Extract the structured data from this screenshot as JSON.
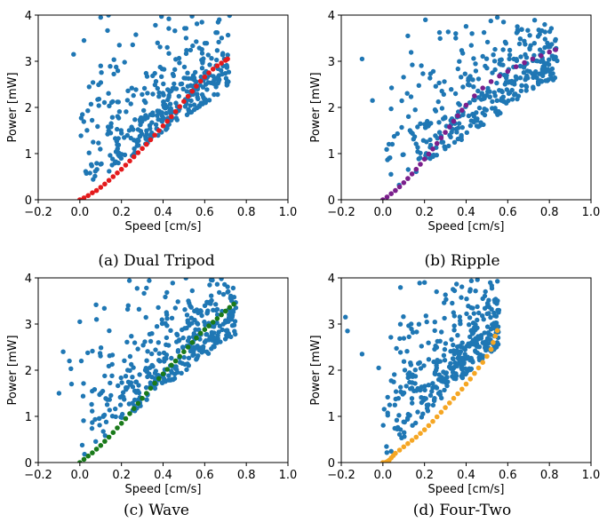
{
  "chart_data": [
    {
      "type": "scatter",
      "caption": "(a) Dual Tripod",
      "xlabel": "Speed [cm/s]",
      "ylabel": "Power [mW]",
      "xlim": [
        -0.2,
        1.0
      ],
      "ylim": [
        0,
        4
      ],
      "xticks": [
        "−0.2",
        "0.0",
        "0.2",
        "0.4",
        "0.6",
        "0.8",
        "1.0"
      ],
      "yticks": [
        "0",
        "1",
        "2",
        "3",
        "4"
      ],
      "colors": {
        "background": "#1f77b4",
        "frontier": "#e41a1c"
      },
      "background": {
        "x_max": 0.72,
        "slope": 4.2,
        "count": 380,
        "outliers": [
          [
            0.1,
            3.95
          ],
          [
            0.02,
            3.45
          ],
          [
            -0.03,
            3.15
          ],
          [
            0.19,
            3.35
          ],
          [
            0.42,
            3.3
          ],
          [
            0.1,
            2.9
          ]
        ]
      },
      "frontier": {
        "x": [
          0.0,
          0.02,
          0.04,
          0.06,
          0.08,
          0.1,
          0.12,
          0.14,
          0.16,
          0.18,
          0.2,
          0.22,
          0.24,
          0.26,
          0.28,
          0.3,
          0.32,
          0.34,
          0.36,
          0.38,
          0.4,
          0.42,
          0.44,
          0.46,
          0.48,
          0.5,
          0.52,
          0.54,
          0.56,
          0.58,
          0.6,
          0.62,
          0.64,
          0.66,
          0.68,
          0.7,
          0.71
        ],
        "y": [
          0.0,
          0.04,
          0.09,
          0.15,
          0.2,
          0.27,
          0.34,
          0.42,
          0.5,
          0.58,
          0.66,
          0.75,
          0.84,
          0.93,
          1.02,
          1.11,
          1.2,
          1.3,
          1.4,
          1.5,
          1.6,
          1.7,
          1.8,
          1.91,
          2.02,
          2.13,
          2.24,
          2.35,
          2.46,
          2.57,
          2.66,
          2.75,
          2.83,
          2.9,
          2.96,
          3.02,
          3.05
        ]
      }
    },
    {
      "type": "scatter",
      "caption": "(b) Ripple",
      "xlabel": "Speed [cm/s]",
      "ylabel": "Power [mW]",
      "xlim": [
        -0.2,
        1.0
      ],
      "ylim": [
        0,
        4
      ],
      "xticks": [
        "−0.2",
        "0.0",
        "0.2",
        "0.4",
        "0.6",
        "0.8",
        "1.0"
      ],
      "yticks": [
        "0",
        "1",
        "2",
        "3",
        "4"
      ],
      "colors": {
        "background": "#1f77b4",
        "frontier": "#7b1f8c"
      },
      "background": {
        "x_max": 0.84,
        "slope": 3.9,
        "count": 380,
        "outliers": [
          [
            0.55,
            3.95
          ],
          [
            0.35,
            3.6
          ],
          [
            0.35,
            3.5
          ],
          [
            0.12,
            3.55
          ],
          [
            -0.1,
            3.05
          ],
          [
            -0.05,
            2.15
          ],
          [
            0.58,
            3.85
          ]
        ]
      },
      "frontier": {
        "x": [
          0.0,
          0.02,
          0.04,
          0.06,
          0.08,
          0.1,
          0.12,
          0.14,
          0.16,
          0.18,
          0.2,
          0.22,
          0.24,
          0.26,
          0.28,
          0.3,
          0.32,
          0.34,
          0.36,
          0.38,
          0.4,
          0.44,
          0.48,
          0.52,
          0.56,
          0.6,
          0.64,
          0.68,
          0.72,
          0.76,
          0.8,
          0.83
        ],
        "y": [
          0.0,
          0.06,
          0.13,
          0.2,
          0.28,
          0.37,
          0.46,
          0.56,
          0.66,
          0.77,
          0.88,
          0.99,
          1.1,
          1.22,
          1.34,
          1.46,
          1.58,
          1.7,
          1.82,
          1.94,
          2.05,
          2.25,
          2.42,
          2.56,
          2.68,
          2.78,
          2.88,
          2.97,
          3.05,
          3.12,
          3.2,
          3.25
        ]
      }
    },
    {
      "type": "scatter",
      "caption": "(c) Wave",
      "xlabel": "Speed [cm/s]",
      "ylabel": "Power [mW]",
      "xlim": [
        -0.2,
        1.0
      ],
      "ylim": [
        0,
        4
      ],
      "xticks": [
        "−0.2",
        "0.0",
        "0.2",
        "0.4",
        "0.6",
        "0.8",
        "1.0"
      ],
      "yticks": [
        "0",
        "1",
        "2",
        "3",
        "4"
      ],
      "colors": {
        "background": "#1f77b4",
        "frontier": "#1a7a1a"
      },
      "background": {
        "x_max": 0.75,
        "slope": 4.6,
        "count": 380,
        "outliers": [
          [
            -0.1,
            1.5
          ],
          [
            -0.08,
            2.4
          ],
          [
            -0.05,
            2.2
          ],
          [
            0.0,
            3.05
          ],
          [
            0.08,
            3.1
          ],
          [
            0.32,
            3.78
          ],
          [
            0.68,
            3.98
          ],
          [
            -0.04,
            1.7
          ]
        ]
      },
      "frontier": {
        "x": [
          0.0,
          0.02,
          0.04,
          0.06,
          0.08,
          0.1,
          0.12,
          0.14,
          0.16,
          0.18,
          0.2,
          0.22,
          0.24,
          0.26,
          0.28,
          0.3,
          0.32,
          0.34,
          0.36,
          0.38,
          0.4,
          0.42,
          0.44,
          0.46,
          0.48,
          0.5,
          0.52,
          0.54,
          0.56,
          0.58,
          0.6,
          0.62,
          0.64,
          0.66,
          0.68,
          0.7,
          0.72,
          0.74
        ],
        "y": [
          0.0,
          0.07,
          0.14,
          0.21,
          0.29,
          0.37,
          0.46,
          0.55,
          0.65,
          0.75,
          0.85,
          0.95,
          1.06,
          1.17,
          1.28,
          1.39,
          1.5,
          1.61,
          1.72,
          1.82,
          1.92,
          2.02,
          2.11,
          2.2,
          2.3,
          2.4,
          2.5,
          2.6,
          2.7,
          2.8,
          2.88,
          2.96,
          3.04,
          3.12,
          3.2,
          3.28,
          3.36,
          3.43
        ]
      }
    },
    {
      "type": "scatter",
      "caption": "(d) Four-Two",
      "xlabel": "Speed [cm/s]",
      "ylabel": "Power [mW]",
      "xlim": [
        -0.2,
        1.0
      ],
      "ylim": [
        0,
        4
      ],
      "xticks": [
        "−0.2",
        "0.0",
        "0.2",
        "0.4",
        "0.6",
        "0.8",
        "1.0"
      ],
      "yticks": [
        "0",
        "1",
        "2",
        "3",
        "4"
      ],
      "colors": {
        "background": "#1f77b4",
        "frontier": "#f5a623"
      },
      "background": {
        "x_max": 0.56,
        "slope": 5.6,
        "count": 380,
        "outliers": [
          [
            -0.18,
            3.15
          ],
          [
            -0.17,
            2.85
          ],
          [
            -0.1,
            2.35
          ],
          [
            0.2,
            3.9
          ],
          [
            0.42,
            3.75
          ],
          [
            0.48,
            3.55
          ],
          [
            -0.02,
            2.05
          ]
        ]
      },
      "frontier": {
        "x": [
          0.0,
          0.01,
          0.02,
          0.03,
          0.04,
          0.05,
          0.06,
          0.08,
          0.1,
          0.12,
          0.14,
          0.16,
          0.18,
          0.2,
          0.22,
          0.24,
          0.26,
          0.28,
          0.3,
          0.32,
          0.34,
          0.36,
          0.38,
          0.4,
          0.42,
          0.44,
          0.46,
          0.48,
          0.5,
          0.52,
          0.53,
          0.54,
          0.55
        ],
        "y": [
          0.0,
          0.0,
          0.02,
          0.05,
          0.1,
          0.15,
          0.2,
          0.27,
          0.34,
          0.41,
          0.48,
          0.55,
          0.63,
          0.71,
          0.8,
          0.89,
          0.99,
          1.09,
          1.19,
          1.29,
          1.39,
          1.49,
          1.59,
          1.7,
          1.81,
          1.93,
          2.05,
          2.17,
          2.3,
          2.45,
          2.6,
          2.74,
          2.86
        ]
      }
    }
  ]
}
